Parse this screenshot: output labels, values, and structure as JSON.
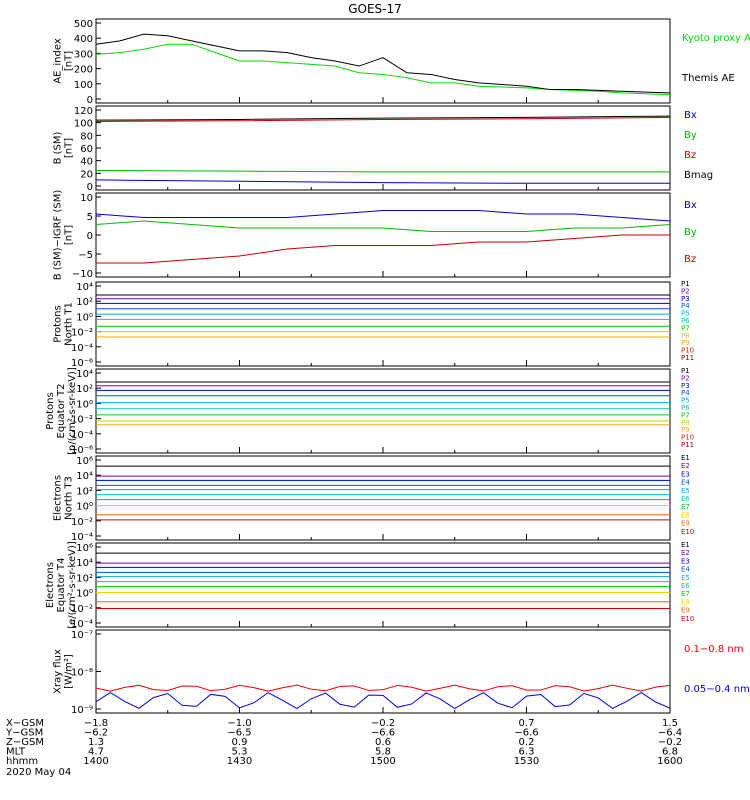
{
  "title": "GOES-17",
  "date_label": "2020 May 04",
  "chart_data": [
    {
      "type": "line",
      "panel": "ae",
      "ylabel": [
        "AE_index",
        "[nT]"
      ],
      "yticks": [
        "500",
        "400",
        "300",
        "200",
        "100",
        "0"
      ],
      "ylim": [
        0,
        500
      ],
      "series": [
        {
          "name": "Kyoto proxy AE",
          "color": "#00dd00",
          "x": [
            1400,
            1405,
            1410,
            1415,
            1420,
            1425,
            1430,
            1435,
            1440,
            1445,
            1450,
            1455,
            1500,
            1505,
            1510,
            1515,
            1520,
            1525,
            1530,
            1535,
            1540,
            1545,
            1550,
            1555,
            1600
          ],
          "y": [
            290,
            300,
            320,
            350,
            350,
            300,
            250,
            250,
            240,
            230,
            220,
            180,
            170,
            150,
            120,
            120,
            100,
            95,
            90,
            80,
            75,
            70,
            60,
            55,
            50
          ]
        },
        {
          "name": "Themis AE",
          "color": "#000000",
          "x": [
            1400,
            1405,
            1410,
            1415,
            1420,
            1425,
            1430,
            1435,
            1440,
            1445,
            1450,
            1455,
            1500,
            1505,
            1510,
            1515,
            1520,
            1525,
            1530,
            1535,
            1540,
            1545,
            1550,
            1555,
            1600
          ],
          "y": [
            350,
            370,
            410,
            400,
            370,
            340,
            310,
            310,
            300,
            270,
            250,
            220,
            270,
            180,
            170,
            140,
            120,
            110,
            100,
            80,
            80,
            75,
            70,
            65,
            60
          ]
        }
      ]
    },
    {
      "type": "line",
      "panel": "b_sm",
      "ylabel": [
        "B (SM)",
        "[nT]"
      ],
      "yticks": [
        "120",
        "100",
        "80",
        "60",
        "40",
        "20",
        "0"
      ],
      "ylim": [
        -5,
        120
      ],
      "series": [
        {
          "name": "Bx",
          "color": "#0000cc",
          "x": [
            1400,
            1430,
            1500,
            1530,
            1600
          ],
          "y": [
            10,
            8,
            6,
            5,
            5
          ]
        },
        {
          "name": "By",
          "color": "#00bb00",
          "x": [
            1400,
            1430,
            1500,
            1530,
            1600
          ],
          "y": [
            24,
            23,
            22,
            22,
            22
          ]
        },
        {
          "name": "Bz",
          "color": "#cc0000",
          "x": [
            1400,
            1430,
            1500,
            1530,
            1600
          ],
          "y": [
            97,
            98,
            100,
            101,
            103
          ]
        },
        {
          "name": "Bmag",
          "color": "#000000",
          "x": [
            1400,
            1430,
            1500,
            1530,
            1600
          ],
          "y": [
            99,
            100,
            102,
            103,
            105
          ]
        }
      ]
    },
    {
      "type": "line",
      "panel": "b_minus_igrf",
      "ylabel": [
        "B (SM)−IGRF (SM)",
        "[nT]"
      ],
      "yticks": [
        "10",
        "5",
        "0",
        "−5",
        "−10"
      ],
      "ylim": [
        -12,
        12
      ],
      "series": [
        {
          "name": "Bx",
          "color": "#0000cc",
          "x": [
            1400,
            1410,
            1420,
            1430,
            1440,
            1450,
            1500,
            1510,
            1520,
            1530,
            1540,
            1550,
            1600
          ],
          "y": [
            6,
            5,
            5,
            5,
            5,
            6,
            7,
            7,
            7,
            6,
            6,
            5,
            4
          ]
        },
        {
          "name": "By",
          "color": "#00bb00",
          "x": [
            1400,
            1410,
            1420,
            1430,
            1440,
            1450,
            1500,
            1510,
            1520,
            1530,
            1540,
            1550,
            1600
          ],
          "y": [
            3,
            4,
            3,
            2,
            2,
            2,
            2,
            1,
            1,
            1,
            2,
            2,
            3
          ]
        },
        {
          "name": "Bz",
          "color": "#cc0000",
          "x": [
            1400,
            1410,
            1420,
            1430,
            1440,
            1450,
            1500,
            1510,
            1520,
            1530,
            1540,
            1550,
            1600
          ],
          "y": [
            -8,
            -8,
            -7,
            -6,
            -4,
            -3,
            -3,
            -3,
            -2,
            -2,
            -1,
            0,
            0
          ]
        }
      ]
    },
    {
      "type": "line",
      "panel": "protons_t1",
      "yscale": "log",
      "ylabel": [
        "Protons",
        "North T1"
      ],
      "yticks": [
        "10⁴",
        "10²",
        "10⁰",
        "10⁻²",
        "10⁻⁴",
        "10⁻⁶"
      ],
      "ylim_exp": [
        -7,
        4
      ],
      "series": [
        {
          "name": "P1",
          "color": "#000000",
          "level": 2.3
        },
        {
          "name": "P2",
          "color": "#7b00a8",
          "level": 1.8
        },
        {
          "name": "P3",
          "color": "#0000cc",
          "level": 1.2
        },
        {
          "name": "P4",
          "color": "#0055ee",
          "level": 0.5
        },
        {
          "name": "P5",
          "color": "#00aaff",
          "level": -0.2
        },
        {
          "name": "P6",
          "color": "#00ccaa",
          "level": -0.9
        },
        {
          "name": "P7",
          "color": "#00cc00",
          "level": -1.8
        },
        {
          "name": "P8",
          "color": "#aadd00",
          "level": -2.5
        },
        {
          "name": "P9",
          "color": "#ffaa00",
          "level": -3.2
        },
        {
          "name": "P10",
          "color": "#dd2200",
          "level": null
        },
        {
          "name": "P11",
          "color": "#990000",
          "level": null
        }
      ]
    },
    {
      "type": "line",
      "panel": "protons_t2",
      "yscale": "log",
      "ylabel": [
        "Protons",
        "Equator T2",
        "[p/(cm²-s-sr-keV)]"
      ],
      "yticks": [
        "10⁴",
        "10²",
        "10⁰",
        "10⁻²",
        "10⁻⁴",
        "10⁻⁶"
      ],
      "ylim_exp": [
        -7,
        4
      ],
      "series": [
        {
          "name": "P1",
          "color": "#000000",
          "level": 2.3
        },
        {
          "name": "P2",
          "color": "#7b00a8",
          "level": 1.8
        },
        {
          "name": "P3",
          "color": "#0000cc",
          "level": 1.2
        },
        {
          "name": "P4",
          "color": "#0055ee",
          "level": 0.5
        },
        {
          "name": "P5",
          "color": "#00aaff",
          "level": -0.4
        },
        {
          "name": "P6",
          "color": "#00ccaa",
          "level": -1.2
        },
        {
          "name": "P7",
          "color": "#00cc00",
          "level": -2.0
        },
        {
          "name": "P8",
          "color": "#aadd00",
          "level": -2.8
        },
        {
          "name": "P9",
          "color": "#ffaa00",
          "level": -3.3
        },
        {
          "name": "P10",
          "color": "#dd2200",
          "level": null
        },
        {
          "name": "P11",
          "color": "#990000",
          "level": null
        }
      ]
    },
    {
      "type": "line",
      "panel": "electrons_t3",
      "yscale": "log",
      "ylabel": [
        "Electrons",
        "North T3"
      ],
      "yticks": [
        "10⁶",
        "10⁴",
        "10²",
        "10⁰",
        "10⁻²",
        "10⁻⁴"
      ],
      "ylim_exp": [
        -4,
        6
      ],
      "series": [
        {
          "name": "E1",
          "color": "#000000",
          "level": 4.8
        },
        {
          "name": "E2",
          "color": "#7b00a8",
          "level": 3.6
        },
        {
          "name": "E3",
          "color": "#0000cc",
          "level": 3.1
        },
        {
          "name": "E4",
          "color": "#0055ee",
          "level": 2.5
        },
        {
          "name": "E5",
          "color": "#00aaff",
          "level": 2.0
        },
        {
          "name": "E6",
          "color": "#00ccaa",
          "level": 1.4
        },
        {
          "name": "E7",
          "color": "#00cc00",
          "level": 0.8
        },
        {
          "name": "E8",
          "color": "#ffcc00",
          "level": 0.1
        },
        {
          "name": "E9",
          "color": "#ff6600",
          "level": -1.0
        },
        {
          "name": "E10",
          "color": "#cc0000",
          "level": -1.6
        }
      ]
    },
    {
      "type": "line",
      "panel": "electrons_t4",
      "yscale": "log",
      "ylabel": [
        "Electrons",
        "Equator T4",
        "[e/(cm²-s-sr-keV)]"
      ],
      "yticks": [
        "10⁶",
        "10⁴",
        "10²",
        "10⁰",
        "10⁻²",
        "10⁻⁴"
      ],
      "ylim_exp": [
        -4,
        6
      ],
      "series": [
        {
          "name": "E1",
          "color": "#000000",
          "level": 4.8
        },
        {
          "name": "E2",
          "color": "#7b00a8",
          "level": 3.6
        },
        {
          "name": "E3",
          "color": "#0000cc",
          "level": 3.1
        },
        {
          "name": "E4",
          "color": "#0055ee",
          "level": 2.5
        },
        {
          "name": "E5",
          "color": "#00aaff",
          "level": 2.0
        },
        {
          "name": "E6",
          "color": "#00ccaa",
          "level": 1.4
        },
        {
          "name": "E7",
          "color": "#00cc00",
          "level": 0.8
        },
        {
          "name": "E8",
          "color": "#ffcc00",
          "level": 0.1
        },
        {
          "name": "E9",
          "color": "#ff6600",
          "level": -1.0
        },
        {
          "name": "E10",
          "color": "#cc0000",
          "level": -1.8
        }
      ]
    },
    {
      "type": "line",
      "panel": "xray",
      "yscale": "log",
      "ylabel": [
        "Xray flux",
        "[W/m²]"
      ],
      "yticks": [
        "10⁻⁷",
        "10⁻⁸",
        "10⁻⁹"
      ],
      "ylim_exp": [
        -9,
        -7
      ],
      "series": [
        {
          "name": "0.1−0.8 nm",
          "color": "#ee0000",
          "level": -8.4
        },
        {
          "name": "0.05−0.4 nm",
          "color": "#0000ee",
          "level": -8.7
        }
      ]
    }
  ],
  "x_axis": {
    "row_labels": [
      "X−GSM",
      "Y−GSM",
      "Z−GSM",
      "MLT",
      "hhmm"
    ],
    "columns": [
      [
        "−1.8",
        "−6.2",
        "1.3",
        "4.7",
        "1400"
      ],
      [
        "−1.0",
        "−6.5",
        "0.9",
        "5.3",
        "1430"
      ],
      [
        "−0.2",
        "−6.6",
        "0.6",
        "5.8",
        "1500"
      ],
      [
        "0.7",
        "−6.6",
        "0.2",
        "6.3",
        "1530"
      ],
      [
        "1.5",
        "−6.4",
        "−0.2",
        "6.8",
        "1600"
      ]
    ]
  }
}
